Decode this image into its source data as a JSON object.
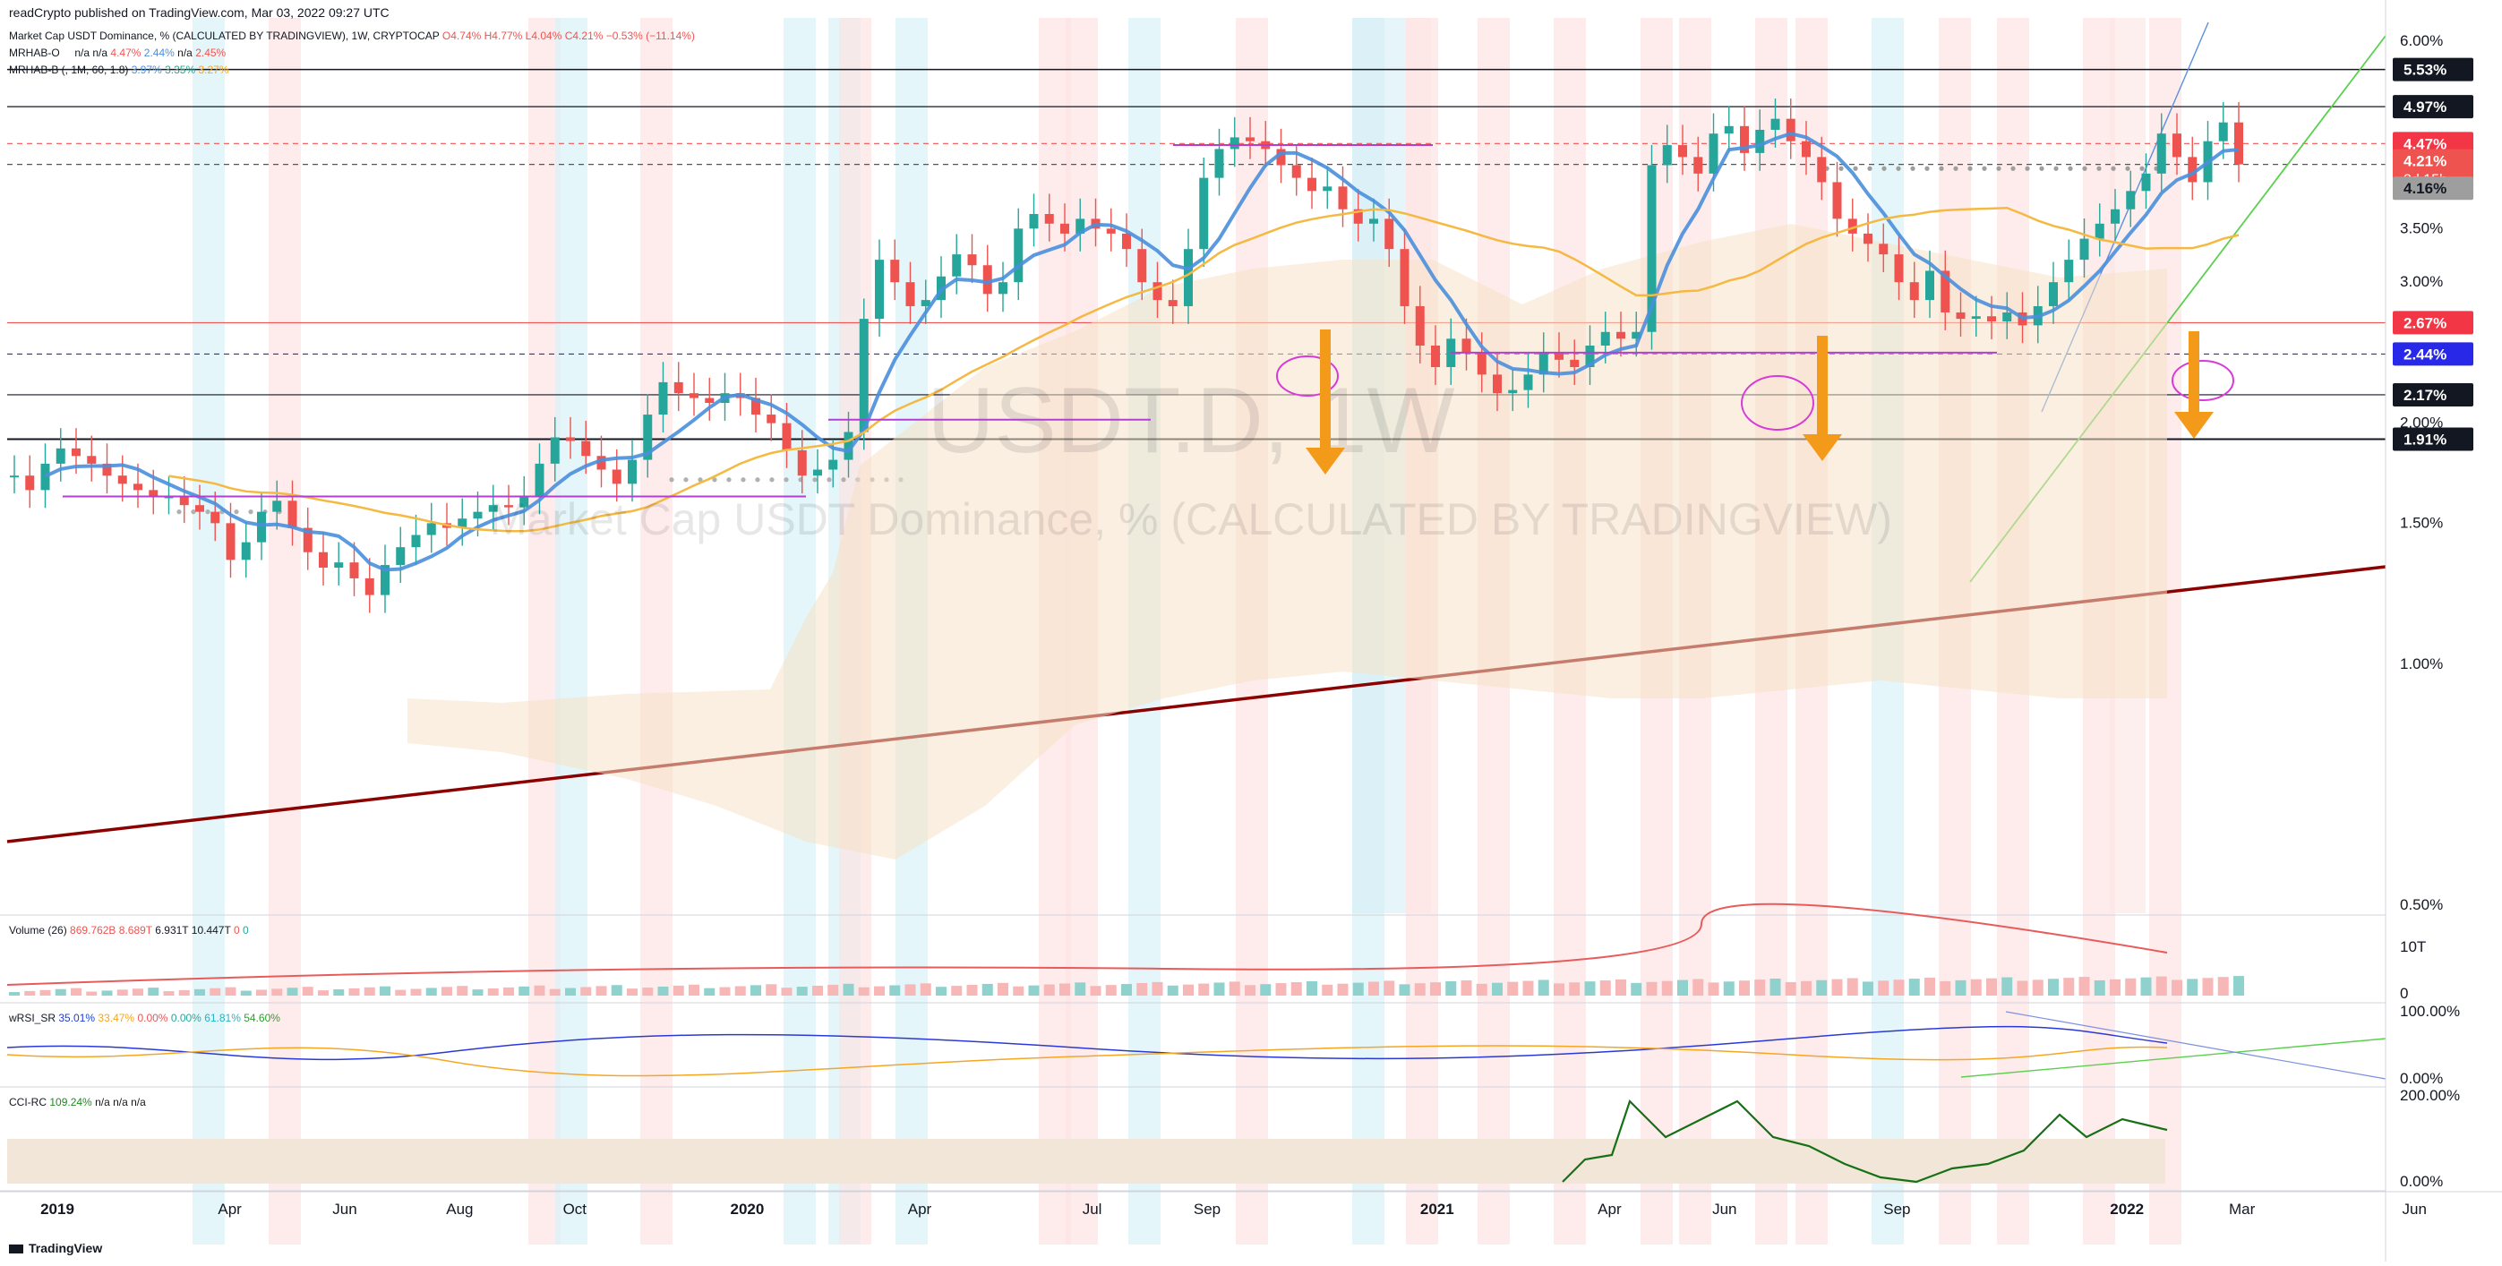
{
  "publisher_line": "readCrypto published on TradingView.com, Mar 03, 2022 09:27 UTC",
  "legend": {
    "main": {
      "name": "Market Cap USDT Dominance, % (CALCULATED BY TRADINGVIEW), 1W, CRYPTOCAP",
      "o": "O4.74%",
      "h": "H4.77%",
      "l": "L4.04%",
      "c": "C4.21%",
      "chg": "−0.53% (−11.14%)"
    },
    "ind1": {
      "name": "MRHAB-O",
      "vals": [
        "n/a",
        "n/a",
        "4.47%",
        "2.44%",
        "n/a",
        "2.45%"
      ]
    },
    "ind2": {
      "name": "MRHAB-B (, 1M, 60, 1.8)",
      "vals": [
        "3.97%",
        "3.35%",
        "3.27%"
      ]
    }
  },
  "watermark": {
    "symbol": "USDT.D, 1W",
    "desc": "Market Cap USDT Dominance, % (CALCULATED BY TRADINGVIEW)"
  },
  "colors": {
    "up": "#26a69a",
    "down": "#ef5350",
    "up_soft": "#7fc4c2",
    "down_soft": "#f3a48a",
    "blue_line": "#4a8fdc",
    "orange_line": "#f5b942",
    "trend": "#8b0000",
    "purple": "#b23fd1"
  },
  "price_axis": {
    "ticks": [
      "6.00%",
      "3.50%",
      "3.00%",
      "2.00%",
      "1.50%",
      "1.00%",
      "0.50%"
    ]
  },
  "price_tags": [
    {
      "label": "5.53%",
      "bg": "#131722",
      "fg": "#ffffff"
    },
    {
      "label": "4.97%",
      "bg": "#131722",
      "fg": "#ffffff"
    },
    {
      "label": "4.47%",
      "bg": "#f23645",
      "fg": "#ffffff"
    },
    {
      "label": "4.21%",
      "sub": "3d 15h",
      "bg": "#ef5350",
      "fg": "#ffffff"
    },
    {
      "label": "4.16%",
      "bg": "#9e9e9e",
      "fg": "#131722"
    },
    {
      "label": "2.67%",
      "bg": "#f23645",
      "fg": "#ffffff"
    },
    {
      "label": "2.44%",
      "bg": "#2828e8",
      "fg": "#ffffff"
    },
    {
      "label": "2.17%",
      "bg": "#131722",
      "fg": "#ffffff"
    },
    {
      "label": "1.91%",
      "bg": "#131722",
      "fg": "#ffffff"
    }
  ],
  "volume_pane": {
    "legend": "Volume (26)",
    "values": [
      "869.762B",
      "8.689T",
      "6.931T",
      "10.447T",
      "0",
      "0"
    ],
    "ticks": [
      "10T",
      "0"
    ]
  },
  "rsi_pane": {
    "legend": "wRSI_SR",
    "values": [
      "35.01%",
      "33.47%",
      "0.00%",
      "0.00%",
      "61.81%",
      "54.60%"
    ],
    "ticks": [
      "100.00%",
      "0.00%"
    ]
  },
  "cci_pane": {
    "legend": "CCI-RC",
    "values": [
      "109.24%",
      "n/a",
      "n/a",
      "n/a"
    ],
    "ticks": [
      "200.00%",
      "0.00%"
    ]
  },
  "time_axis": {
    "labels": [
      "2019",
      "Apr",
      "Jun",
      "Aug",
      "Oct",
      "2020",
      "Apr",
      "Jul",
      "Sep",
      "2021",
      "Apr",
      "Jun",
      "Sep",
      "2022",
      "Mar",
      "Jun"
    ]
  },
  "brand": "TradingView",
  "chart_data": {
    "type": "candlestick",
    "title": "Market Cap USDT Dominance, % (CALCULATED BY TRADINGVIEW)",
    "symbol": "USDT.D",
    "interval": "1W",
    "ylabel": "%",
    "ylim": [
      0.5,
      6.0
    ],
    "y_scale": "log",
    "x_range": [
      "2019-01",
      "2022-06"
    ],
    "horizontal_levels": [
      5.53,
      4.97,
      4.47,
      4.21,
      4.16,
      2.67,
      2.44,
      2.17,
      1.91
    ],
    "close_series_approx": [
      1.72,
      1.65,
      1.78,
      1.86,
      1.82,
      1.78,
      1.72,
      1.68,
      1.65,
      1.62,
      1.62,
      1.58,
      1.55,
      1.5,
      1.35,
      1.42,
      1.55,
      1.6,
      1.48,
      1.38,
      1.32,
      1.34,
      1.28,
      1.22,
      1.33,
      1.4,
      1.45,
      1.5,
      1.48,
      1.52,
      1.55,
      1.58,
      1.57,
      1.62,
      1.78,
      1.92,
      1.9,
      1.82,
      1.75,
      1.68,
      1.8,
      2.05,
      2.25,
      2.18,
      2.15,
      2.12,
      2.18,
      2.15,
      2.05,
      2.0,
      1.85,
      1.72,
      1.75,
      1.8,
      1.95,
      2.7,
      3.2,
      3.0,
      2.8,
      2.85,
      3.05,
      3.25,
      3.15,
      2.9,
      3.0,
      3.5,
      3.65,
      3.55,
      3.45,
      3.6,
      3.5,
      3.45,
      3.3,
      3.0,
      2.85,
      2.8,
      3.3,
      4.05,
      4.4,
      4.55,
      4.5,
      4.4,
      4.2,
      4.05,
      3.9,
      3.95,
      3.7,
      3.55,
      3.6,
      3.3,
      2.8,
      2.5,
      2.35,
      2.55,
      2.45,
      2.3,
      2.18,
      2.2,
      2.3,
      2.45,
      2.4,
      2.35,
      2.5,
      2.6,
      2.55,
      2.6,
      4.2,
      4.45,
      4.3,
      4.1,
      4.6,
      4.7,
      4.35,
      4.65,
      4.8,
      4.5,
      4.3,
      4.0,
      3.6,
      3.45,
      3.35,
      3.25,
      3.0,
      2.85,
      3.1,
      2.75,
      2.7,
      2.72,
      2.68,
      2.75,
      2.65,
      2.8,
      3.0,
      3.2,
      3.4,
      3.55,
      3.7,
      3.9,
      4.1,
      4.6,
      4.3,
      4.0,
      4.5,
      4.75,
      4.21
    ]
  }
}
